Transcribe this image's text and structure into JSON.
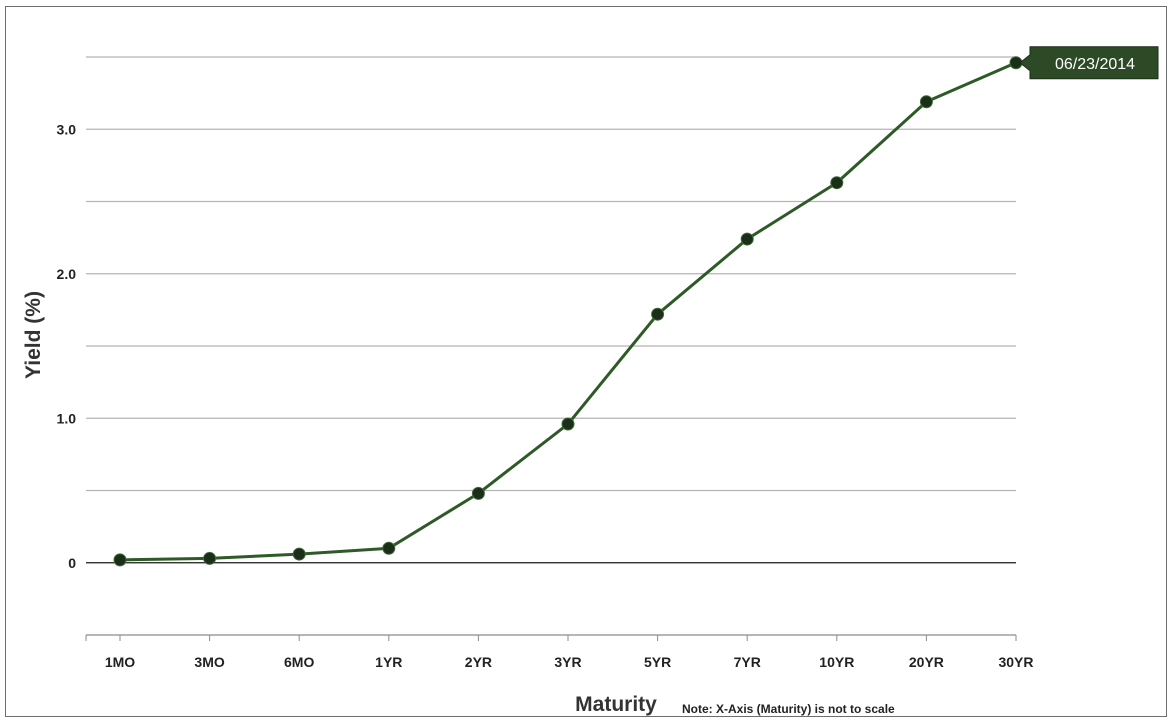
{
  "chart_data": {
    "type": "line",
    "categories": [
      "1MO",
      "3MO",
      "6MO",
      "1YR",
      "2YR",
      "3YR",
      "5YR",
      "7YR",
      "10YR",
      "20YR",
      "30YR"
    ],
    "series": [
      {
        "name": "06/23/2014",
        "values": [
          0.02,
          0.03,
          0.06,
          0.1,
          0.48,
          0.96,
          1.72,
          2.24,
          2.63,
          3.19,
          3.46
        ]
      }
    ],
    "xlabel": "Maturity",
    "ylabel": "Yield (%)",
    "note": "Note: X-Axis (Maturity) is not to scale",
    "ylim": [
      -0.5,
      3.5
    ],
    "yticks": [
      0,
      1.0,
      2.0,
      3.0
    ],
    "ytick_labels": [
      "0",
      "1.0",
      "2.0",
      "3.0"
    ],
    "grid": true,
    "line_color": "#2e5a27",
    "marker_color": "#1b2e19",
    "tag_color": "#2c4a25"
  }
}
